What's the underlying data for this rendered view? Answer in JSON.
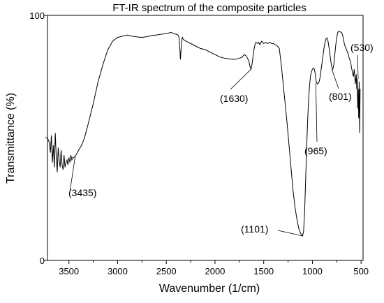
{
  "chart_data": {
    "type": "line",
    "title": "FT-IR spectrum of the composite particles",
    "xlabel": "Wavenumber (1/cm)",
    "ylabel": "Transmittance (%)",
    "xlim": [
      3720,
      480
    ],
    "ylim": [
      0,
      100
    ],
    "x_reversed": true,
    "grid": false,
    "legend": "none",
    "xticks": [
      3500,
      3000,
      2500,
      2000,
      1500,
      1000,
      500
    ],
    "yticks": [
      0,
      100
    ],
    "line_color": "#000000",
    "series": [
      {
        "x": [
          3720,
          3700,
          3690,
          3680,
          3670,
          3660,
          3650,
          3640,
          3630,
          3620,
          3610,
          3600,
          3590,
          3580,
          3570,
          3560,
          3550,
          3540,
          3530,
          3520,
          3510,
          3500,
          3490,
          3480,
          3470,
          3460,
          3450,
          3435,
          3420,
          3400,
          3370,
          3340,
          3300,
          3250,
          3200,
          3150,
          3100,
          3050,
          3000,
          2950,
          2900,
          2850,
          2800,
          2750,
          2700,
          2650,
          2600,
          2550,
          2500,
          2450,
          2420,
          2400,
          2380,
          2370,
          2360,
          2355,
          2350,
          2345,
          2340,
          2335,
          2330,
          2320,
          2300,
          2250,
          2200,
          2150,
          2100,
          2050,
          2000,
          1950,
          1900,
          1850,
          1800,
          1750,
          1720,
          1700,
          1680,
          1660,
          1650,
          1640,
          1630,
          1620,
          1610,
          1600,
          1590,
          1580,
          1560,
          1550,
          1540,
          1520,
          1500,
          1480,
          1460,
          1440,
          1420,
          1400,
          1380,
          1360,
          1340,
          1320,
          1300,
          1280,
          1260,
          1240,
          1220,
          1200,
          1180,
          1160,
          1140,
          1120,
          1101,
          1090,
          1080,
          1070,
          1060,
          1050,
          1040,
          1030,
          1020,
          1010,
          1000,
          990,
          980,
          970,
          965,
          960,
          950,
          940,
          930,
          920,
          910,
          900,
          890,
          880,
          870,
          860,
          850,
          840,
          830,
          820,
          810,
          801,
          790,
          780,
          770,
          760,
          750,
          740,
          730,
          720,
          710,
          700,
          690,
          680,
          670,
          660,
          650,
          640,
          630,
          620,
          610,
          600,
          590,
          580,
          570,
          560,
          550,
          545,
          540,
          535,
          530,
          525,
          520,
          515,
          510
        ],
        "values": [
          50,
          48,
          44,
          51,
          40,
          47,
          38,
          52,
          42,
          36,
          46,
          41,
          38,
          45,
          39,
          37,
          43,
          38,
          40,
          41,
          39,
          42,
          40,
          43,
          41,
          42,
          42,
          42.5,
          43.5,
          45,
          47,
          50,
          56,
          64,
          73,
          80,
          86,
          89.5,
          91,
          91.5,
          92,
          91.5,
          91.2,
          91,
          91.3,
          91.8,
          92,
          92.3,
          92.6,
          93,
          92.5,
          92.3,
          92,
          91,
          86,
          82,
          85,
          88,
          90,
          91,
          90.5,
          90,
          89.5,
          88.5,
          87.5,
          86.5,
          86,
          85,
          84,
          83,
          82.5,
          82.2,
          82,
          82.5,
          83,
          84,
          83.5,
          82,
          81,
          79,
          78,
          80,
          83,
          86,
          88,
          89,
          88.5,
          89,
          88,
          89.5,
          88.5,
          89,
          88.5,
          89,
          88.5,
          88.5,
          88,
          87.5,
          86.5,
          80,
          72,
          64,
          56,
          47,
          38,
          29,
          22,
          17,
          13,
          11,
          10,
          12,
          20,
          32,
          45,
          56,
          65,
          71,
          75,
          77,
          78,
          78.5,
          78,
          76,
          74,
          73,
          72,
          72.3,
          73,
          75,
          78,
          81,
          84,
          87,
          89,
          90.5,
          90.8,
          89.5,
          87,
          84,
          81,
          79,
          78,
          80,
          84,
          88,
          91,
          93,
          93.5,
          93.3,
          93.2,
          93,
          92,
          90,
          88,
          87,
          86,
          85,
          84,
          82,
          81.5,
          79,
          77,
          75,
          78,
          72,
          76,
          70,
          74,
          62,
          70,
          58,
          73,
          52,
          70
        ]
      }
    ],
    "annotations": [
      {
        "text": "(3435)",
        "x": 3435,
        "y": 42.5
      },
      {
        "text": "(1630)",
        "x": 1630,
        "y": 78
      },
      {
        "text": "(1101)",
        "x": 1101,
        "y": 10
      },
      {
        "text": "(965)",
        "x": 965,
        "y": 72.3
      },
      {
        "text": "(801)",
        "x": 801,
        "y": 78
      },
      {
        "text": "(530)",
        "x": 530,
        "y": 74
      }
    ]
  }
}
